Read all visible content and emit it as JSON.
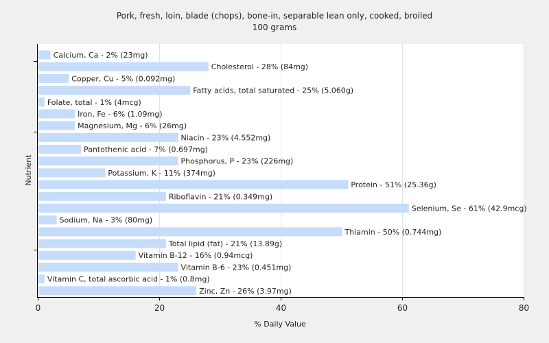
{
  "chart_data": {
    "type": "bar",
    "orientation": "horizontal",
    "title": "Pork, fresh, loin, blade (chops), bone-in, separable lean only, cooked, broiled",
    "subtitle": "100 grams",
    "xlabel": "% Daily Value",
    "ylabel": "Nutrient",
    "xlim": [
      0,
      80
    ],
    "xticks": [
      "0",
      "20",
      "40",
      "60",
      "80"
    ],
    "grid": true,
    "bar_color": "#c5dcfa",
    "categories": [
      "Calcium, Ca",
      "Cholesterol",
      "Copper, Cu",
      "Fatty acids, total saturated",
      "Folate, total",
      "Iron, Fe",
      "Magnesium, Mg",
      "Niacin",
      "Pantothenic acid",
      "Phosphorus, P",
      "Potassium, K",
      "Protein",
      "Riboflavin",
      "Selenium, Se",
      "Sodium, Na",
      "Thiamin",
      "Total lipid (fat)",
      "Vitamin B-12",
      "Vitamin B-6",
      "Vitamin C, total ascorbic acid",
      "Zinc, Zn"
    ],
    "values": [
      2,
      28,
      5,
      25,
      1,
      6,
      6,
      23,
      7,
      23,
      11,
      51,
      21,
      61,
      3,
      50,
      21,
      16,
      23,
      1,
      26
    ],
    "labels": [
      "Calcium, Ca - 2% (23mg)",
      "Cholesterol - 28% (84mg)",
      "Copper, Cu - 5% (0.092mg)",
      "Fatty acids, total saturated - 25% (5.060g)",
      "Folate, total - 1% (4mcg)",
      "Iron, Fe - 6% (1.09mg)",
      "Magnesium, Mg - 6% (26mg)",
      "Niacin - 23% (4.552mg)",
      "Pantothenic acid - 7% (0.697mg)",
      "Phosphorus, P - 23% (226mg)",
      "Potassium, K - 11% (374mg)",
      "Protein - 51% (25.36g)",
      "Riboflavin - 21% (0.349mg)",
      "Selenium, Se - 61% (42.9mcg)",
      "Sodium, Na - 3% (80mg)",
      "Thiamin - 50% (0.744mg)",
      "Total lipid (fat) - 21% (13.89g)",
      "Vitamin B-12 - 16% (0.94mcg)",
      "Vitamin B-6 - 23% (0.451mg)",
      "Vitamin C, total ascorbic acid - 1% (0.8mg)",
      "Zinc, Zn - 26% (3.97mg)"
    ]
  }
}
